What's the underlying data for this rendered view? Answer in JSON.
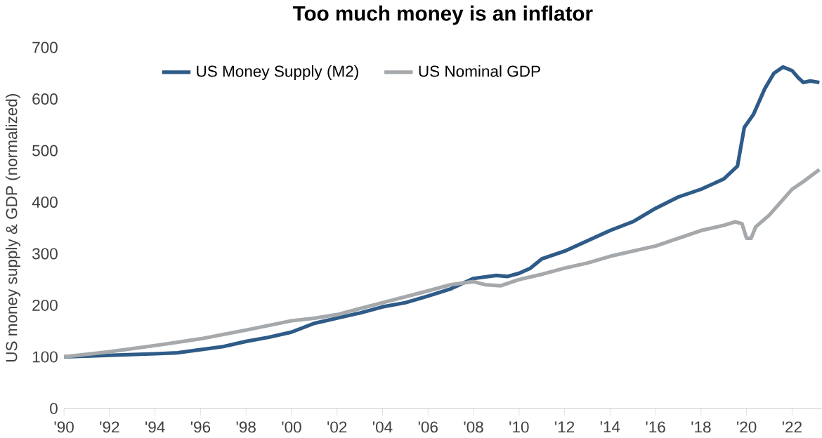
{
  "chart_data": {
    "type": "line",
    "title": "Too much money is an inflator",
    "ylabel": "US money supply & GDP (normalized)",
    "xlim": [
      1990,
      2023.3
    ],
    "ylim": [
      0,
      700
    ],
    "yticks": [
      0,
      100,
      200,
      300,
      400,
      500,
      600,
      700
    ],
    "xticks": [
      {
        "value": 1990,
        "label": "'90"
      },
      {
        "value": 1992,
        "label": "'92"
      },
      {
        "value": 1994,
        "label": "'94"
      },
      {
        "value": 1996,
        "label": "'96"
      },
      {
        "value": 1998,
        "label": "'98"
      },
      {
        "value": 2000,
        "label": "'00"
      },
      {
        "value": 2002,
        "label": "'02"
      },
      {
        "value": 2004,
        "label": "'04"
      },
      {
        "value": 2006,
        "label": "'06"
      },
      {
        "value": 2008,
        "label": "'08"
      },
      {
        "value": 2010,
        "label": "'10"
      },
      {
        "value": 2012,
        "label": "'12"
      },
      {
        "value": 2014,
        "label": "'14"
      },
      {
        "value": 2016,
        "label": "'16"
      },
      {
        "value": 2018,
        "label": "'18"
      },
      {
        "value": 2020,
        "label": "'20"
      },
      {
        "value": 2022,
        "label": "'22"
      }
    ],
    "grid": false,
    "legend": "top",
    "marker": "none",
    "line_style": "solid",
    "series": [
      {
        "name": "US Money Supply (M2)",
        "color": "#2e5b87",
        "x": [
          1990,
          1992,
          1994,
          1995,
          1996,
          1997,
          1998,
          1999,
          2000,
          2001,
          2002,
          2003,
          2004,
          2005,
          2006,
          2007,
          2008,
          2009,
          2009.5,
          2010,
          2010.5,
          2011,
          2012,
          2013,
          2014,
          2015,
          2016,
          2017,
          2018,
          2019,
          2019.6,
          2019.9,
          2020.3,
          2020.8,
          2021.2,
          2021.6,
          2022,
          2022.3,
          2022.5,
          2022.8,
          2023.2
        ],
        "values": [
          100,
          103,
          106,
          108,
          114,
          120,
          130,
          138,
          148,
          165,
          175,
          185,
          197,
          205,
          218,
          232,
          252,
          258,
          256,
          262,
          272,
          290,
          305,
          325,
          345,
          362,
          388,
          410,
          425,
          445,
          470,
          545,
          570,
          620,
          650,
          662,
          655,
          640,
          632,
          635,
          632
        ]
      },
      {
        "name": "US Nominal GDP",
        "color": "#a6a9ac",
        "x": [
          1990,
          1992,
          1994,
          1996,
          1998,
          2000,
          2001,
          2002,
          2004,
          2006,
          2007,
          2008,
          2008.5,
          2009.2,
          2010,
          2011,
          2012,
          2013,
          2014,
          2015,
          2016,
          2017,
          2018,
          2019,
          2019.5,
          2019.8,
          2020.0,
          2020.2,
          2020.4,
          2021,
          2021.5,
          2022,
          2022.5,
          2023.2
        ],
        "values": [
          100,
          110,
          122,
          135,
          152,
          170,
          175,
          182,
          205,
          228,
          240,
          246,
          240,
          238,
          250,
          260,
          272,
          282,
          295,
          305,
          315,
          330,
          345,
          355,
          362,
          358,
          330,
          330,
          352,
          375,
          400,
          425,
          440,
          463
        ]
      }
    ]
  }
}
